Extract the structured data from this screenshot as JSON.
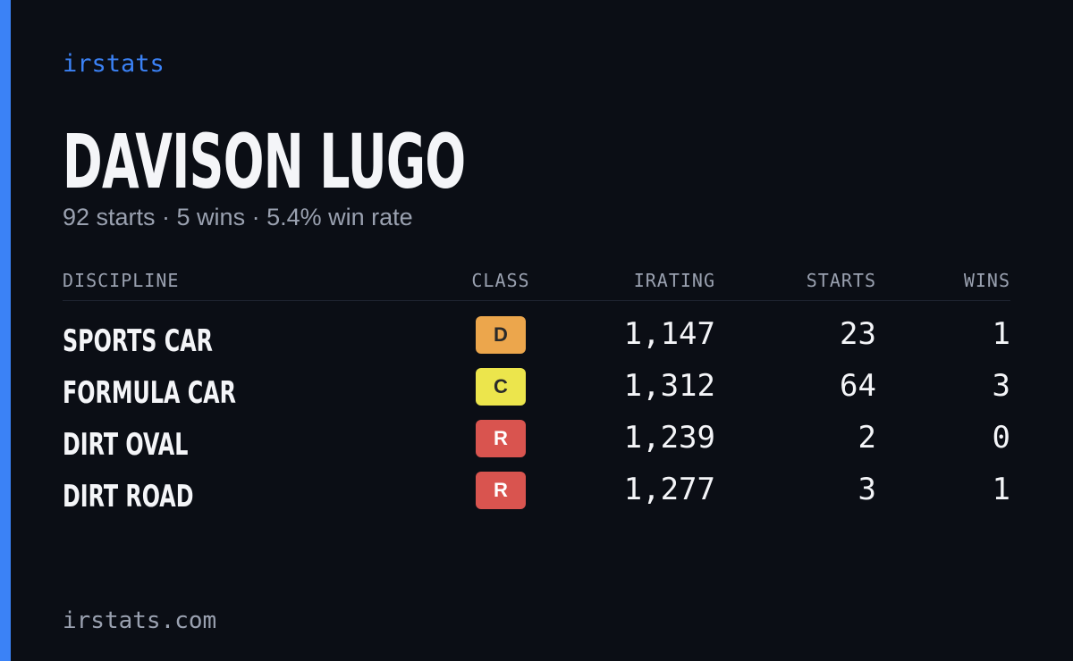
{
  "header": {
    "brand": "irstats",
    "name": "DAVISON LUGO",
    "summary": "92 starts · 5 wins · 5.4% win rate"
  },
  "table": {
    "columns": [
      "DISCIPLINE",
      "CLASS",
      "IRATING",
      "STARTS",
      "WINS"
    ],
    "rows": [
      {
        "discipline": "SPORTS CAR",
        "class": "D",
        "class_color": "#eca64c",
        "class_text_color": "#2a2a2a",
        "irating": "1,147",
        "starts": 23,
        "wins": 1
      },
      {
        "discipline": "FORMULA CAR",
        "class": "C",
        "class_color": "#ece54c",
        "class_text_color": "#2a2a2a",
        "irating": "1,312",
        "starts": 64,
        "wins": 3
      },
      {
        "discipline": "DIRT OVAL",
        "class": "R",
        "class_color": "#d9544f",
        "class_text_color": "#ffffff",
        "irating": "1,239",
        "starts": 2,
        "wins": 0
      },
      {
        "discipline": "DIRT ROAD",
        "class": "R",
        "class_color": "#d9544f",
        "class_text_color": "#ffffff",
        "irating": "1,277",
        "starts": 3,
        "wins": 1
      }
    ]
  },
  "footer": {
    "url": "irstats.com"
  }
}
